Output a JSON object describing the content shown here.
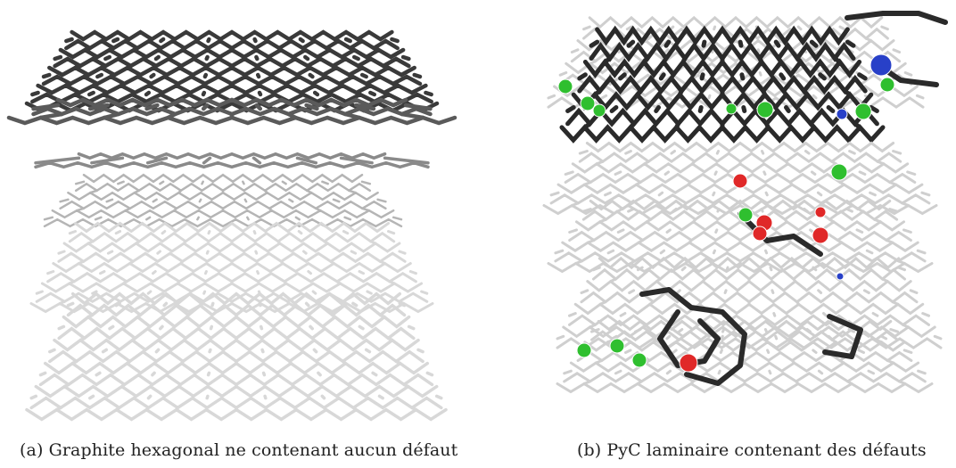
{
  "figure": {
    "panels": [
      {
        "id": "a",
        "caption": "(a) Graphite hexagonal ne contenant aucun défaut",
        "bond_colors": [
          "#3a3a3a",
          "#5a5a5a",
          "#8a8a8a",
          "#b5b5b5",
          "#d8d8d8",
          "#eeeeee"
        ]
      },
      {
        "id": "b",
        "caption": "(b) PyC laminaire contenant des défauts",
        "atom_colors": {
          "hydrogen": "#2fbf2f",
          "oxygen": "#e02828",
          "nitrogen": "#2840c8"
        },
        "bond_colors": [
          "#2a2a2a",
          "#cfcfcf"
        ]
      }
    ]
  }
}
